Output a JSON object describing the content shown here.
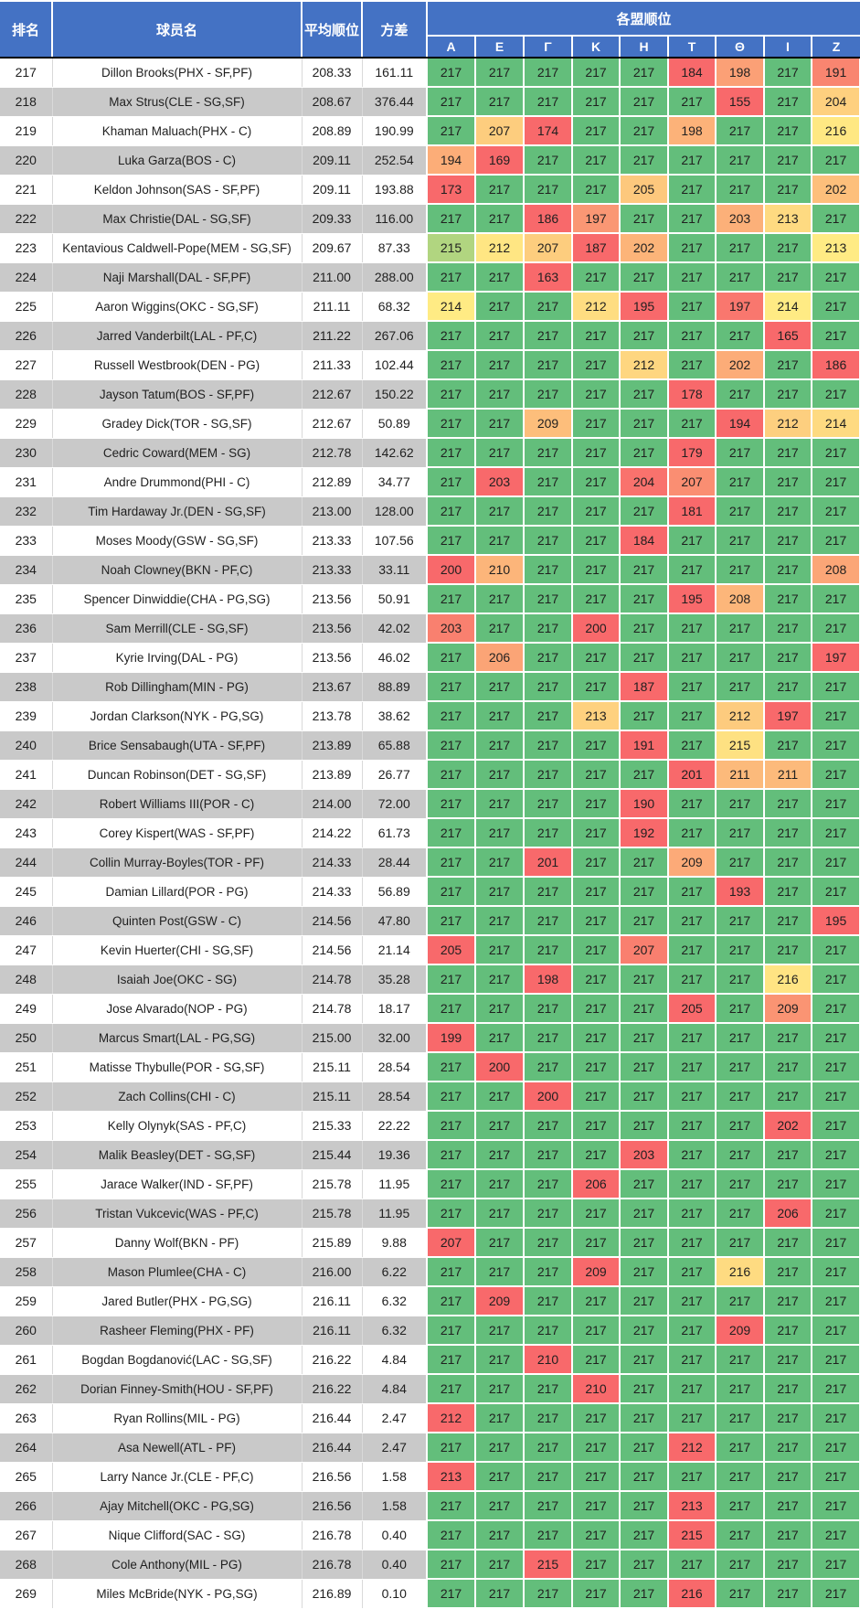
{
  "header": {
    "col_rank": "排名",
    "col_player": "球员名",
    "col_avg": "平均顺位",
    "col_var": "方差",
    "col_leagues_group": "各盟顺位",
    "league_columns": [
      "A",
      "E",
      "Γ",
      "K",
      "H",
      "T",
      "Θ",
      "I",
      "Z"
    ]
  },
  "colors": {
    "header_bg": "#4472C4",
    "header_text": "#FFFFFF",
    "row_bg": "#FFFFFF",
    "row_alt_bg": "#C9C9C9",
    "header_divider": "#000000",
    "scale_min": "#F8696B",
    "scale_mid": "#FFEB84",
    "scale_max": "#63BE7B",
    "body_text": "#1F1F1F"
  },
  "rows": [
    {
      "rank": 217,
      "player": "Dillon Brooks(PHX - SF,PF)",
      "avg": "208.33",
      "var": "161.11",
      "leagues": [
        217,
        217,
        217,
        217,
        217,
        184,
        198,
        217,
        191
      ]
    },
    {
      "rank": 218,
      "player": "Max Strus(CLE - SG,SF)",
      "avg": "208.67",
      "var": "376.44",
      "leagues": [
        217,
        217,
        217,
        217,
        217,
        217,
        155,
        217,
        204
      ]
    },
    {
      "rank": 219,
      "player": "Khaman Maluach(PHX - C)",
      "avg": "208.89",
      "var": "190.99",
      "leagues": [
        217,
        207,
        174,
        217,
        217,
        198,
        217,
        217,
        216
      ]
    },
    {
      "rank": 220,
      "player": "Luka Garza(BOS - C)",
      "avg": "209.11",
      "var": "252.54",
      "leagues": [
        194,
        169,
        217,
        217,
        217,
        217,
        217,
        217,
        217
      ]
    },
    {
      "rank": 221,
      "player": "Keldon Johnson(SAS - SF,PF)",
      "avg": "209.11",
      "var": "193.88",
      "leagues": [
        173,
        217,
        217,
        217,
        205,
        217,
        217,
        217,
        202
      ]
    },
    {
      "rank": 222,
      "player": "Max Christie(DAL - SG,SF)",
      "avg": "209.33",
      "var": "116.00",
      "leagues": [
        217,
        217,
        186,
        197,
        217,
        217,
        203,
        213,
        217
      ]
    },
    {
      "rank": 223,
      "player": "Kentavious Caldwell-Pope(MEM - SG,SF)",
      "avg": "209.67",
      "var": "87.33",
      "leagues": [
        215,
        212,
        207,
        187,
        202,
        217,
        217,
        217,
        213
      ]
    },
    {
      "rank": 224,
      "player": "Naji Marshall(DAL - SF,PF)",
      "avg": "211.00",
      "var": "288.00",
      "leagues": [
        217,
        217,
        163,
        217,
        217,
        217,
        217,
        217,
        217
      ]
    },
    {
      "rank": 225,
      "player": "Aaron Wiggins(OKC - SG,SF)",
      "avg": "211.11",
      "var": "68.32",
      "leagues": [
        214,
        217,
        217,
        212,
        195,
        217,
        197,
        214,
        217
      ]
    },
    {
      "rank": 226,
      "player": "Jarred Vanderbilt(LAL - PF,C)",
      "avg": "211.22",
      "var": "267.06",
      "leagues": [
        217,
        217,
        217,
        217,
        217,
        217,
        217,
        165,
        217
      ]
    },
    {
      "rank": 227,
      "player": "Russell Westbrook(DEN - PG)",
      "avg": "211.33",
      "var": "102.44",
      "leagues": [
        217,
        217,
        217,
        217,
        212,
        217,
        202,
        217,
        186
      ]
    },
    {
      "rank": 228,
      "player": "Jayson Tatum(BOS - SF,PF)",
      "avg": "212.67",
      "var": "150.22",
      "leagues": [
        217,
        217,
        217,
        217,
        217,
        178,
        217,
        217,
        217
      ]
    },
    {
      "rank": 229,
      "player": "Gradey Dick(TOR - SG,SF)",
      "avg": "212.67",
      "var": "50.89",
      "leagues": [
        217,
        217,
        209,
        217,
        217,
        217,
        194,
        212,
        214
      ]
    },
    {
      "rank": 230,
      "player": "Cedric Coward(MEM - SG)",
      "avg": "212.78",
      "var": "142.62",
      "leagues": [
        217,
        217,
        217,
        217,
        217,
        179,
        217,
        217,
        217
      ]
    },
    {
      "rank": 231,
      "player": "Andre Drummond(PHI - C)",
      "avg": "212.89",
      "var": "34.77",
      "leagues": [
        217,
        203,
        217,
        217,
        204,
        207,
        217,
        217,
        217
      ]
    },
    {
      "rank": 232,
      "player": "Tim Hardaway Jr.(DEN - SG,SF)",
      "avg": "213.00",
      "var": "128.00",
      "leagues": [
        217,
        217,
        217,
        217,
        217,
        181,
        217,
        217,
        217
      ]
    },
    {
      "rank": 233,
      "player": "Moses Moody(GSW - SG,SF)",
      "avg": "213.33",
      "var": "107.56",
      "leagues": [
        217,
        217,
        217,
        217,
        184,
        217,
        217,
        217,
        217
      ]
    },
    {
      "rank": 234,
      "player": "Noah Clowney(BKN - PF,C)",
      "avg": "213.33",
      "var": "33.11",
      "leagues": [
        200,
        210,
        217,
        217,
        217,
        217,
        217,
        217,
        208
      ]
    },
    {
      "rank": 235,
      "player": "Spencer Dinwiddie(CHA - PG,SG)",
      "avg": "213.56",
      "var": "50.91",
      "leagues": [
        217,
        217,
        217,
        217,
        217,
        195,
        208,
        217,
        217
      ]
    },
    {
      "rank": 236,
      "player": "Sam Merrill(CLE - SG,SF)",
      "avg": "213.56",
      "var": "42.02",
      "leagues": [
        203,
        217,
        217,
        200,
        217,
        217,
        217,
        217,
        217
      ]
    },
    {
      "rank": 237,
      "player": "Kyrie Irving(DAL - PG)",
      "avg": "213.56",
      "var": "46.02",
      "leagues": [
        217,
        206,
        217,
        217,
        217,
        217,
        217,
        217,
        197
      ]
    },
    {
      "rank": 238,
      "player": "Rob Dillingham(MIN - PG)",
      "avg": "213.67",
      "var": "88.89",
      "leagues": [
        217,
        217,
        217,
        217,
        187,
        217,
        217,
        217,
        217
      ]
    },
    {
      "rank": 239,
      "player": "Jordan Clarkson(NYK - PG,SG)",
      "avg": "213.78",
      "var": "38.62",
      "leagues": [
        217,
        217,
        217,
        213,
        217,
        217,
        212,
        197,
        217
      ]
    },
    {
      "rank": 240,
      "player": "Brice Sensabaugh(UTA - SF,PF)",
      "avg": "213.89",
      "var": "65.88",
      "leagues": [
        217,
        217,
        217,
        217,
        191,
        217,
        215,
        217,
        217
      ]
    },
    {
      "rank": 241,
      "player": "Duncan Robinson(DET - SG,SF)",
      "avg": "213.89",
      "var": "26.77",
      "leagues": [
        217,
        217,
        217,
        217,
        217,
        201,
        211,
        211,
        217
      ]
    },
    {
      "rank": 242,
      "player": "Robert Williams III(POR - C)",
      "avg": "214.00",
      "var": "72.00",
      "leagues": [
        217,
        217,
        217,
        217,
        190,
        217,
        217,
        217,
        217
      ]
    },
    {
      "rank": 243,
      "player": "Corey Kispert(WAS - SF,PF)",
      "avg": "214.22",
      "var": "61.73",
      "leagues": [
        217,
        217,
        217,
        217,
        192,
        217,
        217,
        217,
        217
      ]
    },
    {
      "rank": 244,
      "player": "Collin Murray-Boyles(TOR - PF)",
      "avg": "214.33",
      "var": "28.44",
      "leagues": [
        217,
        217,
        201,
        217,
        217,
        209,
        217,
        217,
        217
      ]
    },
    {
      "rank": 245,
      "player": "Damian Lillard(POR - PG)",
      "avg": "214.33",
      "var": "56.89",
      "leagues": [
        217,
        217,
        217,
        217,
        217,
        217,
        193,
        217,
        217
      ]
    },
    {
      "rank": 246,
      "player": "Quinten Post(GSW - C)",
      "avg": "214.56",
      "var": "47.80",
      "leagues": [
        217,
        217,
        217,
        217,
        217,
        217,
        217,
        217,
        195
      ]
    },
    {
      "rank": 247,
      "player": "Kevin Huerter(CHI - SG,SF)",
      "avg": "214.56",
      "var": "21.14",
      "leagues": [
        205,
        217,
        217,
        217,
        207,
        217,
        217,
        217,
        217
      ]
    },
    {
      "rank": 248,
      "player": "Isaiah Joe(OKC - SG)",
      "avg": "214.78",
      "var": "35.28",
      "leagues": [
        217,
        217,
        198,
        217,
        217,
        217,
        217,
        216,
        217
      ]
    },
    {
      "rank": 249,
      "player": "Jose Alvarado(NOP - PG)",
      "avg": "214.78",
      "var": "18.17",
      "leagues": [
        217,
        217,
        217,
        217,
        217,
        205,
        217,
        209,
        217
      ]
    },
    {
      "rank": 250,
      "player": "Marcus Smart(LAL - PG,SG)",
      "avg": "215.00",
      "var": "32.00",
      "leagues": [
        199,
        217,
        217,
        217,
        217,
        217,
        217,
        217,
        217
      ]
    },
    {
      "rank": 251,
      "player": "Matisse Thybulle(POR - SG,SF)",
      "avg": "215.11",
      "var": "28.54",
      "leagues": [
        217,
        200,
        217,
        217,
        217,
        217,
        217,
        217,
        217
      ]
    },
    {
      "rank": 252,
      "player": "Zach Collins(CHI - C)",
      "avg": "215.11",
      "var": "28.54",
      "leagues": [
        217,
        217,
        200,
        217,
        217,
        217,
        217,
        217,
        217
      ]
    },
    {
      "rank": 253,
      "player": "Kelly Olynyk(SAS - PF,C)",
      "avg": "215.33",
      "var": "22.22",
      "leagues": [
        217,
        217,
        217,
        217,
        217,
        217,
        217,
        202,
        217
      ]
    },
    {
      "rank": 254,
      "player": "Malik Beasley(DET - SG,SF)",
      "avg": "215.44",
      "var": "19.36",
      "leagues": [
        217,
        217,
        217,
        217,
        203,
        217,
        217,
        217,
        217
      ]
    },
    {
      "rank": 255,
      "player": "Jarace Walker(IND - SF,PF)",
      "avg": "215.78",
      "var": "11.95",
      "leagues": [
        217,
        217,
        217,
        206,
        217,
        217,
        217,
        217,
        217
      ]
    },
    {
      "rank": 256,
      "player": "Tristan Vukcevic(WAS - PF,C)",
      "avg": "215.78",
      "var": "11.95",
      "leagues": [
        217,
        217,
        217,
        217,
        217,
        217,
        217,
        206,
        217
      ]
    },
    {
      "rank": 257,
      "player": "Danny Wolf(BKN - PF)",
      "avg": "215.89",
      "var": "9.88",
      "leagues": [
        207,
        217,
        217,
        217,
        217,
        217,
        217,
        217,
        217
      ]
    },
    {
      "rank": 258,
      "player": "Mason Plumlee(CHA - C)",
      "avg": "216.00",
      "var": "6.22",
      "leagues": [
        217,
        217,
        217,
        209,
        217,
        217,
        216,
        217,
        217
      ]
    },
    {
      "rank": 259,
      "player": "Jared Butler(PHX - PG,SG)",
      "avg": "216.11",
      "var": "6.32",
      "leagues": [
        217,
        209,
        217,
        217,
        217,
        217,
        217,
        217,
        217
      ]
    },
    {
      "rank": 260,
      "player": "Rasheer Fleming(PHX - PF)",
      "avg": "216.11",
      "var": "6.32",
      "leagues": [
        217,
        217,
        217,
        217,
        217,
        217,
        209,
        217,
        217
      ]
    },
    {
      "rank": 261,
      "player": "Bogdan Bogdanović(LAC - SG,SF)",
      "avg": "216.22",
      "var": "4.84",
      "leagues": [
        217,
        217,
        210,
        217,
        217,
        217,
        217,
        217,
        217
      ]
    },
    {
      "rank": 262,
      "player": "Dorian Finney-Smith(HOU - SF,PF)",
      "avg": "216.22",
      "var": "4.84",
      "leagues": [
        217,
        217,
        217,
        210,
        217,
        217,
        217,
        217,
        217
      ]
    },
    {
      "rank": 263,
      "player": "Ryan Rollins(MIL - PG)",
      "avg": "216.44",
      "var": "2.47",
      "leagues": [
        212,
        217,
        217,
        217,
        217,
        217,
        217,
        217,
        217
      ]
    },
    {
      "rank": 264,
      "player": "Asa Newell(ATL - PF)",
      "avg": "216.44",
      "var": "2.47",
      "leagues": [
        217,
        217,
        217,
        217,
        217,
        212,
        217,
        217,
        217
      ]
    },
    {
      "rank": 265,
      "player": "Larry Nance Jr.(CLE - PF,C)",
      "avg": "216.56",
      "var": "1.58",
      "leagues": [
        213,
        217,
        217,
        217,
        217,
        217,
        217,
        217,
        217
      ]
    },
    {
      "rank": 266,
      "player": "Ajay Mitchell(OKC - PG,SG)",
      "avg": "216.56",
      "var": "1.58",
      "leagues": [
        217,
        217,
        217,
        217,
        217,
        213,
        217,
        217,
        217
      ]
    },
    {
      "rank": 267,
      "player": "Nique Clifford(SAC - SG)",
      "avg": "216.78",
      "var": "0.40",
      "leagues": [
        217,
        217,
        217,
        217,
        217,
        215,
        217,
        217,
        217
      ]
    },
    {
      "rank": 268,
      "player": "Cole Anthony(MIL - PG)",
      "avg": "216.78",
      "var": "0.40",
      "leagues": [
        217,
        217,
        215,
        217,
        217,
        217,
        217,
        217,
        217
      ]
    },
    {
      "rank": 269,
      "player": "Miles McBride(NYK - PG,SG)",
      "avg": "216.89",
      "var": "0.10",
      "leagues": [
        217,
        217,
        217,
        217,
        217,
        216,
        217,
        217,
        217
      ]
    }
  ]
}
